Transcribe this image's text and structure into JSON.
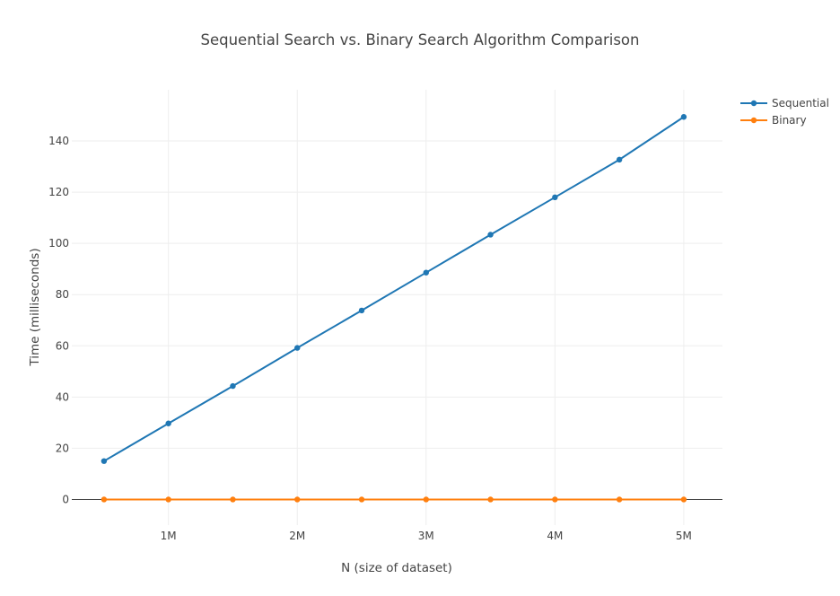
{
  "chart_data": {
    "type": "line",
    "title": "Sequential Search vs. Binary Search Algorithm Comparison",
    "xlabel": "N (size of dataset)",
    "ylabel": "Time (milliseconds)",
    "x": [
      500000,
      1000000,
      1500000,
      2000000,
      2500000,
      3000000,
      3500000,
      4000000,
      4500000,
      5000000
    ],
    "xlim": [
      250000,
      5300000
    ],
    "ylim": [
      -10,
      160
    ],
    "x_ticks": [
      {
        "value": 1000000,
        "label": "1M"
      },
      {
        "value": 2000000,
        "label": "2M"
      },
      {
        "value": 3000000,
        "label": "3M"
      },
      {
        "value": 4000000,
        "label": "4M"
      },
      {
        "value": 5000000,
        "label": "5M"
      }
    ],
    "y_ticks": [
      {
        "value": 0,
        "label": "0"
      },
      {
        "value": 20,
        "label": "20"
      },
      {
        "value": 40,
        "label": "40"
      },
      {
        "value": 60,
        "label": "60"
      },
      {
        "value": 80,
        "label": "80"
      },
      {
        "value": 100,
        "label": "100"
      },
      {
        "value": 120,
        "label": "120"
      },
      {
        "value": 140,
        "label": "140"
      }
    ],
    "grid": true,
    "legend_position": "top-right",
    "series": [
      {
        "name": "Sequential",
        "color": "#1f77b4",
        "values": [
          15.0,
          29.7,
          44.3,
          59.2,
          73.8,
          88.6,
          103.4,
          118.0,
          132.7,
          149.4
        ]
      },
      {
        "name": "Binary",
        "color": "#ff7f0e",
        "values": [
          0.003,
          0.003,
          0.003,
          0.003,
          0.003,
          0.003,
          0.003,
          0.003,
          0.003,
          0.003
        ]
      }
    ]
  }
}
